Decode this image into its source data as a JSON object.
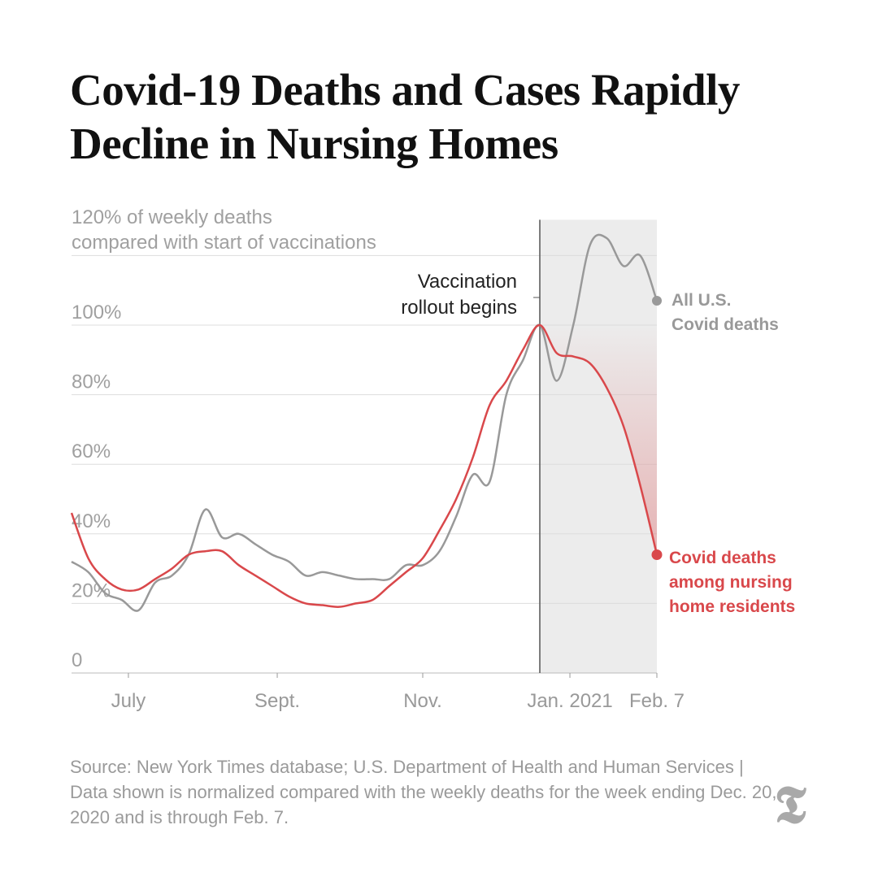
{
  "title": "Covid-19 Deaths and Cases Rapidly Decline in Nursing Homes",
  "chart_data": {
    "type": "line",
    "ylabel_line1": "120% of weekly deaths",
    "ylabel_line2": "compared with start of vaccinations",
    "ylim": [
      0,
      120
    ],
    "yticks": [
      0,
      20,
      40,
      60,
      80,
      100
    ],
    "ytick_labels": [
      "0",
      "20%",
      "40%",
      "60%",
      "80%",
      "100%"
    ],
    "x_unit": "weeks since week ending June 7, 2020",
    "xlim": [
      0,
      35
    ],
    "xticks": [
      {
        "week": 3.4,
        "label": "July"
      },
      {
        "week": 12.3,
        "label": "Sept."
      },
      {
        "week": 21,
        "label": "Nov."
      },
      {
        "week": 29.8,
        "label": "Jan. 2021"
      },
      {
        "week": 35,
        "label": "Feb. 7"
      }
    ],
    "annotation": {
      "week": 28,
      "line1": "Vaccination",
      "line2": "rollout begins"
    },
    "series": [
      {
        "name": "All U.S. Covid deaths",
        "label_line1": "All U.S.",
        "label_line2": "Covid deaths",
        "color": "#999999",
        "values": [
          32,
          29,
          23,
          21,
          18,
          26,
          28,
          34,
          47,
          39,
          40,
          37,
          34,
          32,
          28,
          29,
          28,
          27,
          27,
          27,
          31,
          31,
          35,
          45,
          57,
          55,
          80,
          90,
          100,
          84,
          100,
          123,
          125,
          117,
          120,
          107
        ]
      },
      {
        "name": "Covid deaths among nursing home residents",
        "label_line1": "Covid deaths",
        "label_line2": "among nursing",
        "label_line3": "home residents",
        "color": "#d9484b",
        "values": [
          46,
          33,
          27,
          24,
          24,
          27,
          30,
          34,
          35,
          35,
          31,
          28,
          25,
          22,
          20,
          19.5,
          19,
          20,
          21,
          25,
          29,
          33,
          41,
          50,
          62,
          77,
          84,
          93,
          100,
          92,
          91,
          89,
          82,
          71,
          54,
          34
        ]
      }
    ]
  },
  "source": "Source: New York Times database; U.S. Department of Health and Human Services | Data shown is normalized compared with the weekly deaths for the week ending Dec. 20, 2020 and is through Feb. 7.",
  "logo": "T"
}
